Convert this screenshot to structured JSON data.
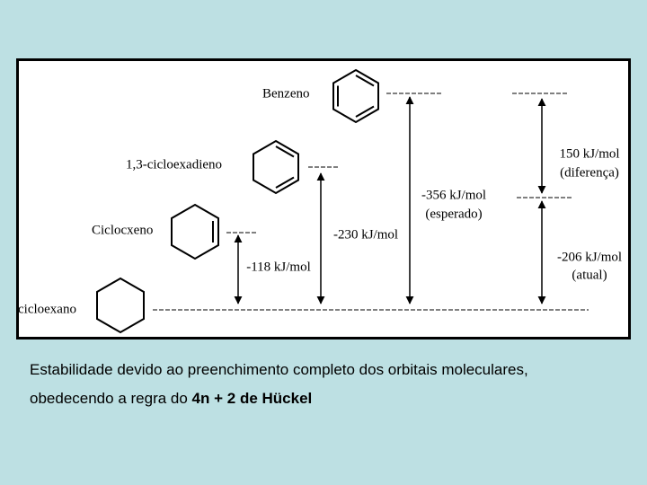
{
  "diagram": {
    "molecules": [
      {
        "label": "Benzeno"
      },
      {
        "label": "1,3-cicloexadieno"
      },
      {
        "label": "Ciclocxeno"
      },
      {
        "label": "cicloexano"
      }
    ],
    "arrows": [
      {
        "label": "-118 kJ/mol"
      },
      {
        "label": "-230 kJ/mol"
      },
      {
        "label": "-356 kJ/mol",
        "note": "(esperado)"
      },
      {
        "label": "150 kJ/mol",
        "note": "(diferença)"
      },
      {
        "label": "-206 kJ/mol",
        "note": "(atual)"
      }
    ]
  },
  "caption": {
    "line1": "Estabilidade devido ao preenchimento completo dos orbitais moleculares,",
    "line2": "obedecendo a regra do ",
    "line2_bold": "4n + 2 de Hückel"
  }
}
